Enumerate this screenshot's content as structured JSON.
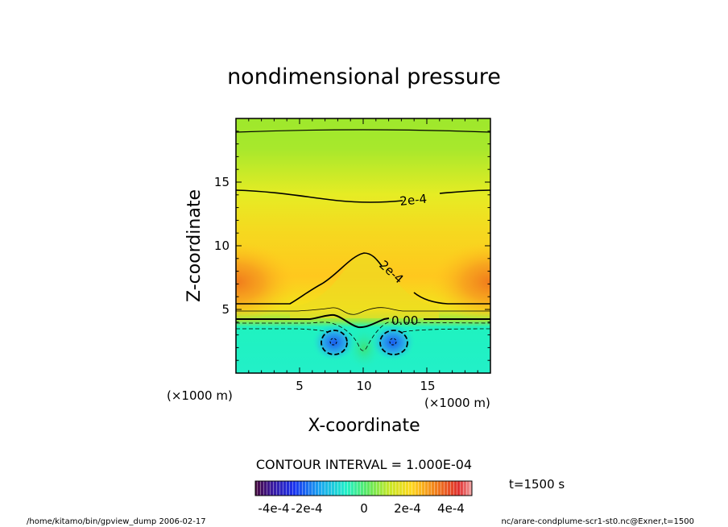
{
  "chart_data": {
    "type": "heatmap",
    "title": "nondimensional pressure",
    "xlabel": "X-coordinate",
    "ylabel": "Z-coordinate",
    "x_unit": "(×1000 m)",
    "y_unit": "(×1000 m)",
    "xlim": [
      0,
      20
    ],
    "ylim": [
      0,
      20
    ],
    "x_ticks": [
      "5",
      "10",
      "15"
    ],
    "y_ticks": [
      "5",
      "10",
      "15"
    ],
    "contour_interval_text": "CONTOUR INTERVAL = 1.000E-04",
    "time_label": "t=1500 s",
    "contour_labels": [
      "2e-4",
      "2e-4",
      "0.00"
    ],
    "colorbar": {
      "ticks": [
        "-4e-4",
        "-2e-4",
        "0",
        "2e-4",
        "4e-4"
      ],
      "range": [
        -0.0005,
        0.0005
      ]
    }
  },
  "footer": {
    "left": "/home/kitamo/bin/gpview_dump  2006-02-17",
    "right": "nc/arare-condplume-scr1-st0.nc@Exner,t=1500"
  }
}
